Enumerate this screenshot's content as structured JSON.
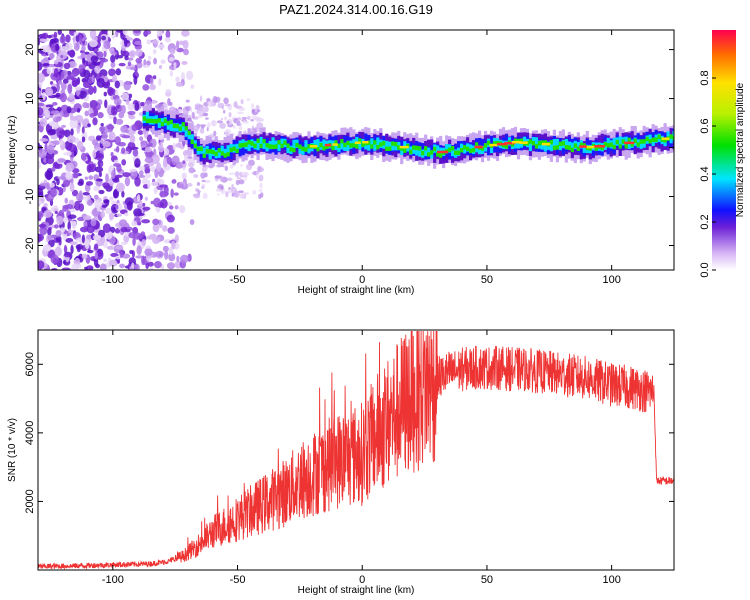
{
  "figure": {
    "title": "PAZ1.2024.314.00.16.G19"
  },
  "chart_data": [
    {
      "type": "heatmap",
      "xlabel": "Height of straight line (km)",
      "ylabel": "Frequency (Hz)",
      "xlim": [
        -130,
        125
      ],
      "ylim": [
        -25,
        24
      ],
      "xticks": [
        -100,
        -50,
        0,
        50,
        100
      ],
      "yticks": [
        -20,
        -10,
        0,
        10,
        20
      ],
      "colorbar": {
        "label": "Normalized spectral amplitude",
        "range": [
          0,
          1
        ],
        "ticks": [
          "0.0",
          "0.2",
          "0.4",
          "0.6",
          "0.8"
        ]
      },
      "ridge_center": [
        {
          "x": -88,
          "y": 6
        },
        {
          "x": -80,
          "y": 5
        },
        {
          "x": -72,
          "y": 4
        },
        {
          "x": -65,
          "y": -1
        },
        {
          "x": -55,
          "y": -1
        },
        {
          "x": -45,
          "y": 1
        },
        {
          "x": -25,
          "y": 0
        },
        {
          "x": 0,
          "y": 1
        },
        {
          "x": 30,
          "y": -1
        },
        {
          "x": 60,
          "y": 1
        },
        {
          "x": 90,
          "y": 0
        },
        {
          "x": 125,
          "y": 2
        }
      ]
    },
    {
      "type": "line",
      "xlabel": "Height of straight line (km)",
      "ylabel": "SNR (10 * v/v)",
      "xlim": [
        -130,
        125
      ],
      "ylim": [
        0,
        7000
      ],
      "xticks": [
        -100,
        -50,
        0,
        50,
        100
      ],
      "yticks": [
        2000,
        4000,
        6000
      ],
      "series": [
        {
          "color": "#ee3333",
          "x": [
            -130,
            -115,
            -100,
            -85,
            -78,
            -72,
            -68,
            -63,
            -60,
            -55,
            -50,
            -45,
            -40,
            -35,
            -30,
            -25,
            -20,
            -15,
            -10,
            -5,
            0,
            5,
            10,
            15,
            20,
            25,
            30,
            35,
            40,
            45,
            50,
            55,
            60,
            65,
            70,
            75,
            80,
            85,
            90,
            95,
            100,
            105,
            110,
            115,
            117,
            118,
            120,
            125
          ],
          "y": [
            100,
            120,
            150,
            180,
            250,
            400,
            600,
            900,
            1100,
            1300,
            1500,
            1700,
            1900,
            2100,
            2300,
            2600,
            2800,
            3000,
            3200,
            3300,
            3400,
            3900,
            4300,
            4700,
            5100,
            5400,
            5600,
            5750,
            5850,
            5900,
            5900,
            5900,
            5850,
            5850,
            5800,
            5750,
            5700,
            5650,
            5600,
            5500,
            5400,
            5350,
            5300,
            5200,
            5200,
            2600,
            2600,
            2600
          ]
        }
      ]
    }
  ]
}
